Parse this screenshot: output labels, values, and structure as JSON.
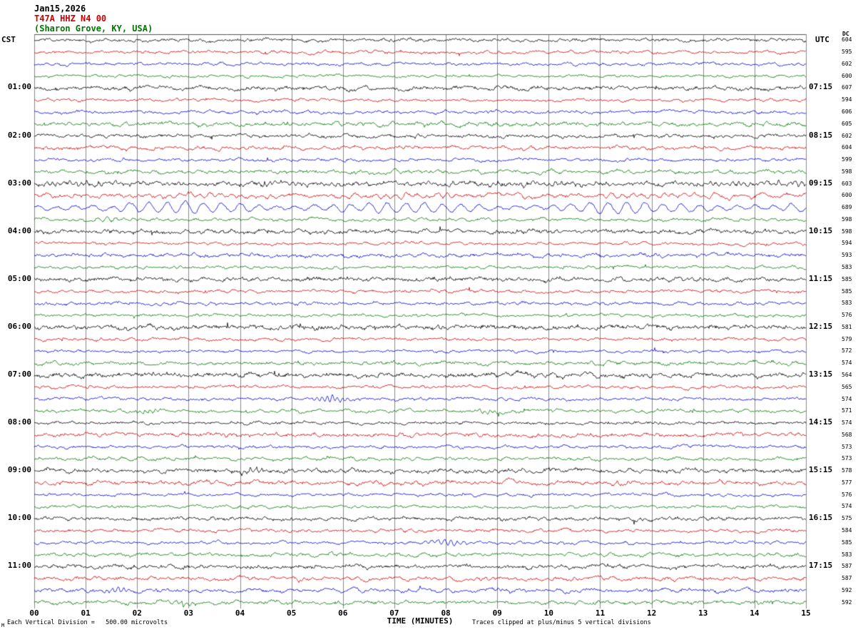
{
  "title": {
    "date": "Jan15,2026",
    "station": "T47A HHZ N4 00",
    "location": "(Sharon Grove, KY, USA)"
  },
  "axes": {
    "left_label": "CST",
    "right_label": "UTC",
    "dc_label": "DC",
    "xlabel": "TIME (MINUTES)",
    "x_ticks": [
      "00",
      "01",
      "02",
      "03",
      "04",
      "05",
      "06",
      "07",
      "08",
      "09",
      "10",
      "11",
      "12",
      "13",
      "14",
      "15"
    ]
  },
  "left_times": [
    "01:00",
    "02:00",
    "03:00",
    "04:00",
    "05:00",
    "06:00",
    "07:00",
    "08:00",
    "09:00",
    "10:00",
    "11:00"
  ],
  "right_times": [
    "07:15",
    "08:15",
    "09:15",
    "10:15",
    "11:15",
    "12:15",
    "13:15",
    "14:15",
    "15:15",
    "16:15",
    "17:15"
  ],
  "dc_values": [
    604,
    595,
    602,
    600,
    607,
    594,
    606,
    605,
    602,
    604,
    599,
    598,
    603,
    600,
    689,
    598,
    598,
    594,
    593,
    583,
    585,
    585,
    583,
    576,
    581,
    579,
    572,
    574,
    564,
    565,
    574,
    571,
    574,
    568,
    573,
    573,
    578,
    577,
    576,
    574,
    575,
    584,
    585,
    583,
    587,
    587,
    592,
    592
  ],
  "footer": {
    "scale_note": "Each Vertical Division =   500.00 microvolts",
    "clip_note": "Traces clipped at plus/minus 5 vertical divisions",
    "corner_mark": "M"
  },
  "theme": {
    "trace_colors": [
      "#000000",
      "#cc0000",
      "#0000cc",
      "#007700"
    ],
    "title_colors": [
      "#000000",
      "#cc0000",
      "#007700"
    ],
    "grid_color": "#888888",
    "top_rule_color": "#555555"
  },
  "chart_data": {
    "type": "line",
    "subtype": "seismogram-helicorder",
    "station": "T47A HHZ N4 00",
    "location": "(Sharon Grove, KY, USA)",
    "date": "Jan15,2026",
    "x_range_minutes": [
      0,
      15
    ],
    "minutes_per_row": 15,
    "rows": 48,
    "rows_per_hour": 4,
    "left_timezone": "CST",
    "right_timezone": "UTC",
    "vertical_division_microvolts": "500.00",
    "clip_divisions": 5,
    "grid": "vertical-minute-lines",
    "seed": 1337,
    "events": [
      {
        "row": 12,
        "start": 0,
        "end": 15,
        "amp": 1.6,
        "freq": 9,
        "shape": "steady",
        "note": "elevated spiky noise"
      },
      {
        "row": 13,
        "start": 0,
        "end": 15,
        "amp": 2.2,
        "freq": 5,
        "shape": "steady",
        "note": "elevated amplitude"
      },
      {
        "row": 13,
        "start": 12.6,
        "end": 15,
        "amp": 6.5,
        "freq": 2.2,
        "shape": "ramp",
        "note": "large oscillation at end of row"
      },
      {
        "row": 14,
        "start": 0,
        "end": 15,
        "amp": 7.5,
        "freq": 2.8,
        "shape": "steady",
        "note": "large low-frequency oscillation, DC 689"
      },
      {
        "row": 15,
        "start": 0,
        "end": 2.5,
        "amp": 2.2,
        "freq": 6,
        "shape": "burst"
      },
      {
        "row": 30,
        "start": 5.1,
        "end": 6.4,
        "amp": 4.5,
        "freq": 10,
        "shape": "burst"
      },
      {
        "row": 31,
        "start": 1.8,
        "end": 2.7,
        "amp": 4.0,
        "freq": 10,
        "shape": "burst"
      },
      {
        "row": 31,
        "start": 8.4,
        "end": 9.2,
        "amp": 3.2,
        "freq": 10,
        "shape": "burst"
      },
      {
        "row": 36,
        "start": 3.9,
        "end": 4.6,
        "amp": 3.0,
        "freq": 9,
        "shape": "burst"
      },
      {
        "row": 37,
        "start": 11.2,
        "end": 12.0,
        "amp": 2.8,
        "freq": 9,
        "shape": "burst"
      },
      {
        "row": 42,
        "start": 7.4,
        "end": 8.6,
        "amp": 5.0,
        "freq": 8,
        "shape": "burst"
      },
      {
        "row": 46,
        "start": 1.2,
        "end": 2.0,
        "amp": 3.5,
        "freq": 9,
        "shape": "burst"
      },
      {
        "row": 47,
        "start": 2.6,
        "end": 3.3,
        "amp": 3.0,
        "freq": 9,
        "shape": "burst"
      }
    ]
  }
}
